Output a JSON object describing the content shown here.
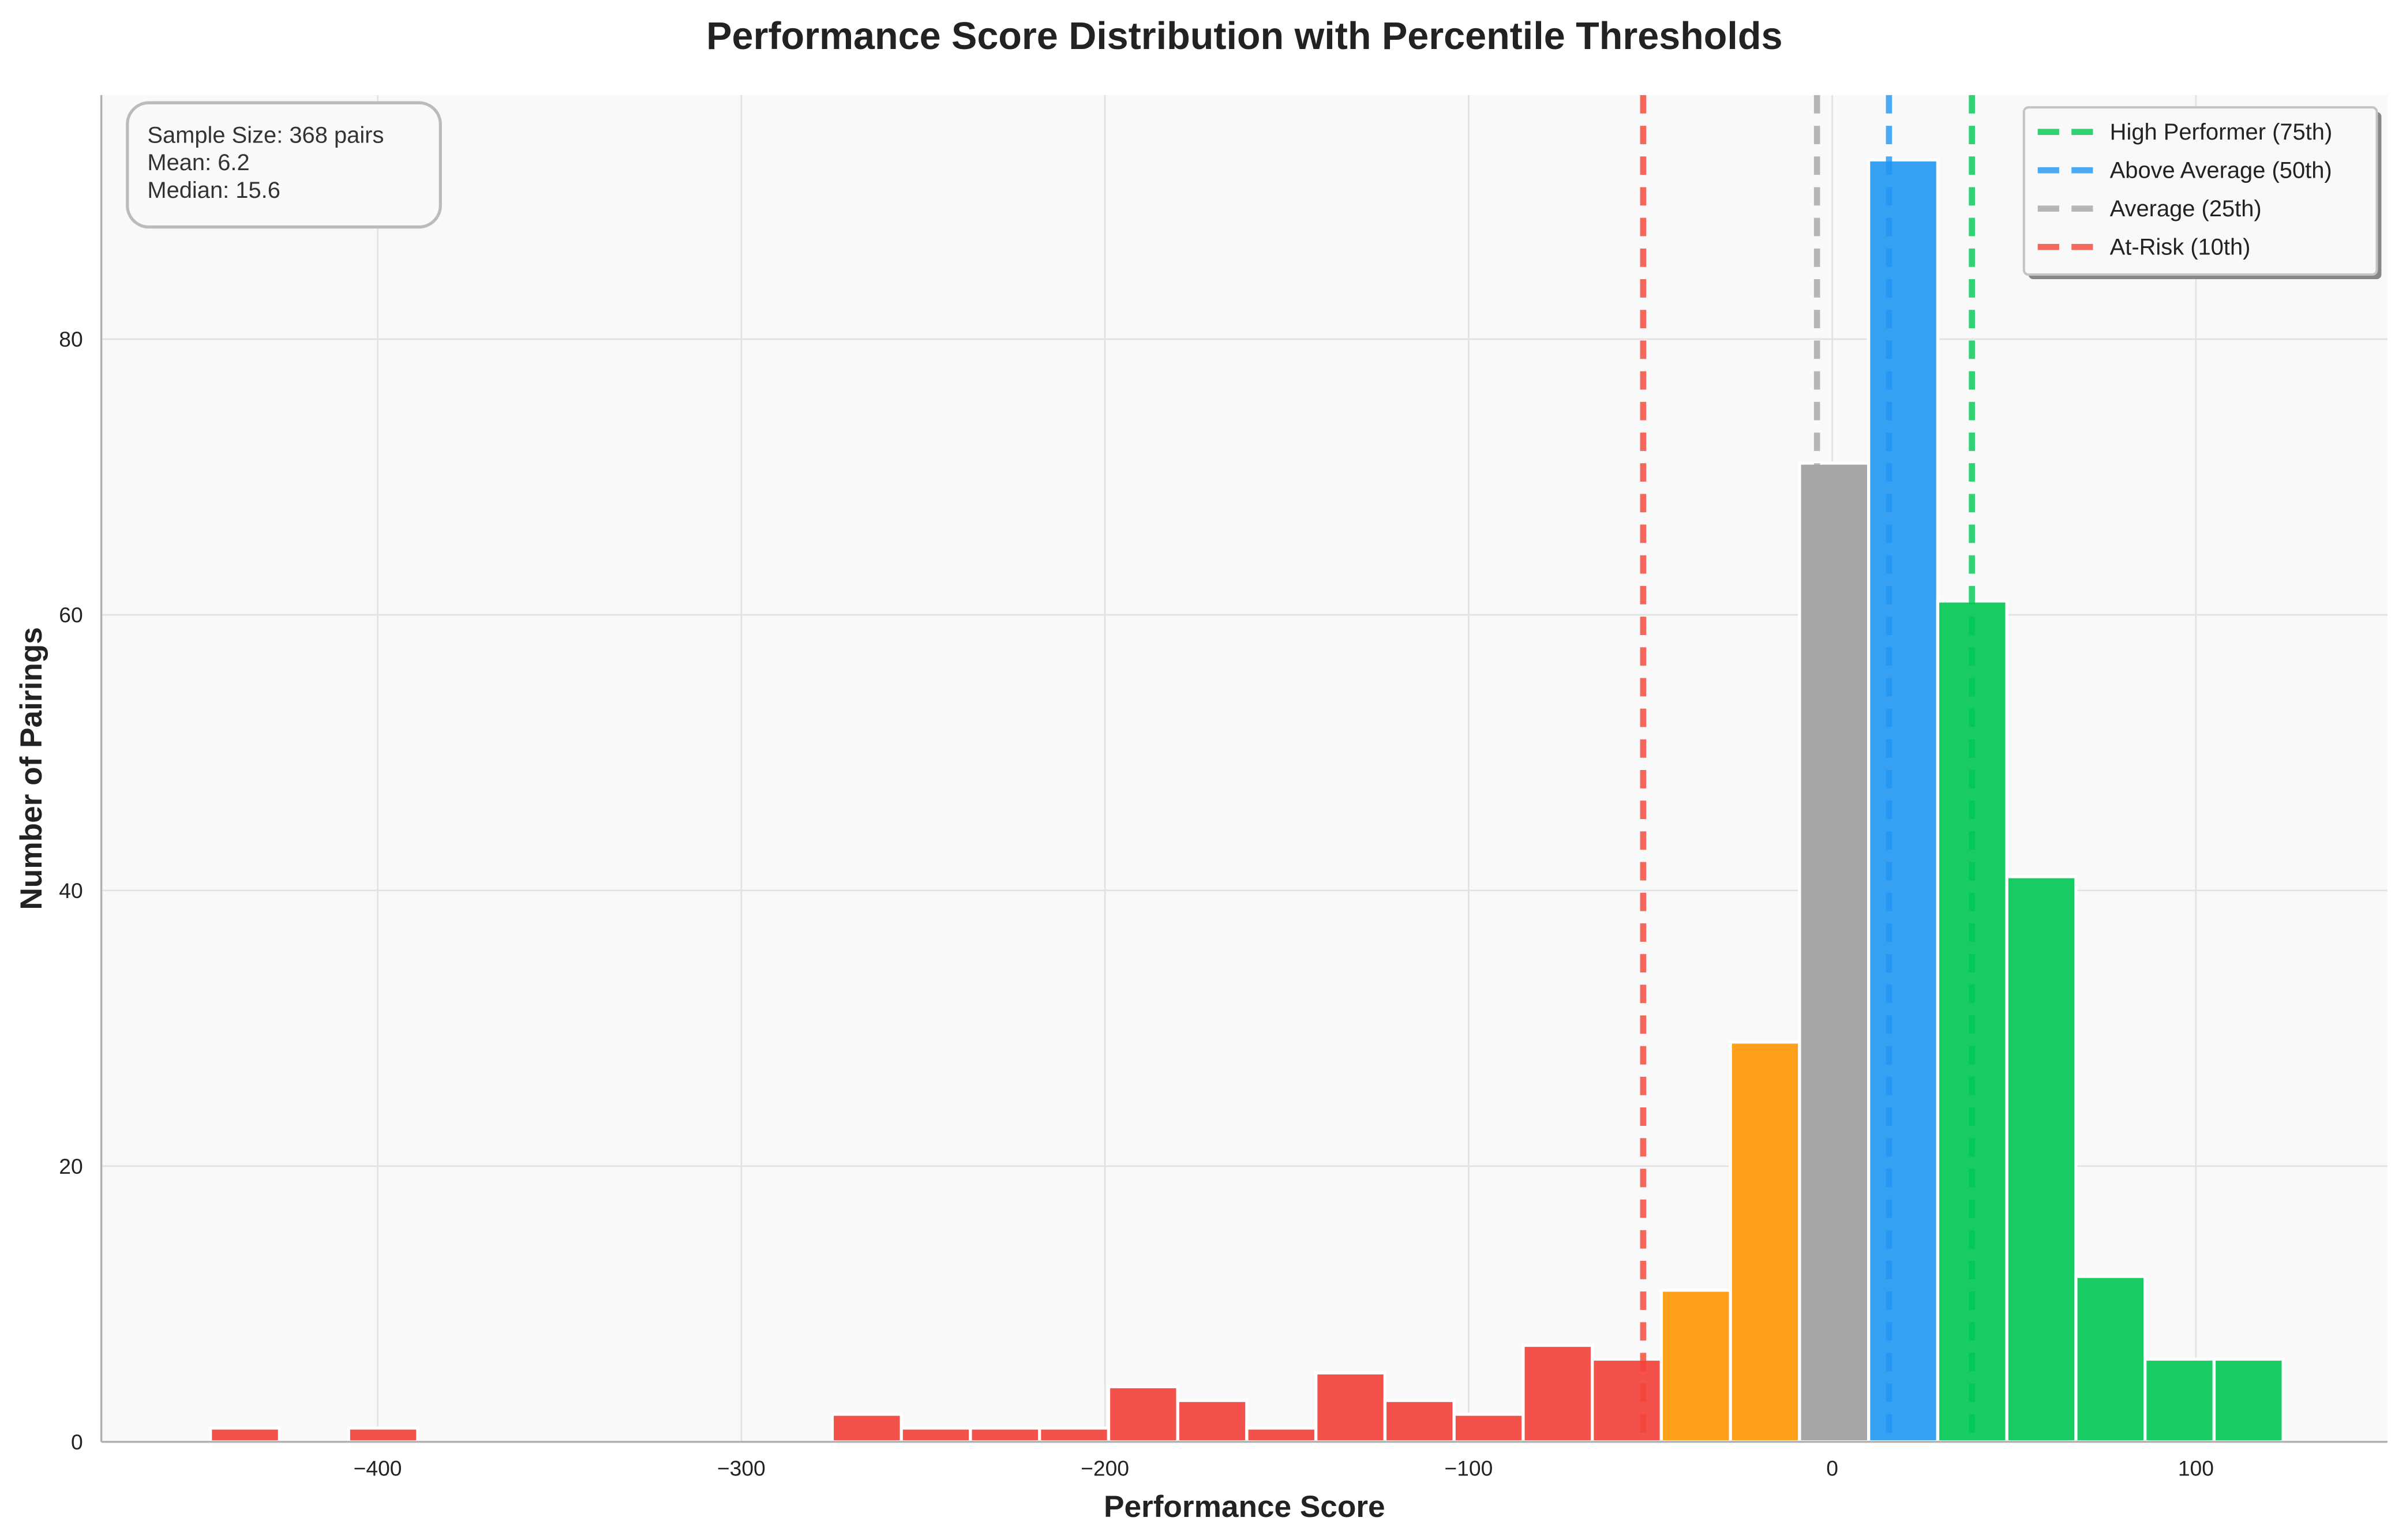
{
  "chart_data": {
    "type": "bar",
    "subtype": "histogram",
    "title": "Performance Score Distribution with Percentile Thresholds",
    "xlabel": "Performance Score",
    "ylabel": "Number of Pairings",
    "xlim": [
      -476,
      152.7
    ],
    "ylim": [
      0,
      97.7
    ],
    "xticks": [
      -400,
      -300,
      -200,
      -100,
      0,
      100
    ],
    "xtick_labels": [
      "−400",
      "−300",
      "−200",
      "−100",
      "0",
      "100"
    ],
    "yticks": [
      0,
      20,
      40,
      60,
      80
    ],
    "ytick_labels": [
      "0",
      "20",
      "40",
      "60",
      "80"
    ],
    "grid": true,
    "bin_start": -446,
    "bin_width": 19.0,
    "counts": [
      1,
      0,
      1,
      0,
      0,
      0,
      0,
      0,
      0,
      2,
      1,
      1,
      1,
      4,
      3,
      1,
      5,
      3,
      2,
      7,
      6,
      11,
      29,
      71,
      93,
      61,
      41,
      12,
      6,
      6
    ],
    "bin_groups": [
      "risk",
      "risk",
      "risk",
      "risk",
      "risk",
      "risk",
      "risk",
      "risk",
      "risk",
      "risk",
      "risk",
      "risk",
      "risk",
      "risk",
      "risk",
      "risk",
      "risk",
      "risk",
      "risk",
      "risk",
      "risk",
      "below",
      "below",
      "average",
      "above",
      "high",
      "high",
      "high",
      "high",
      "high"
    ],
    "group_colors": {
      "risk": "#f3524a",
      "below": "#ffa01c",
      "average": "#a6a6a6",
      "above": "#36a0f3",
      "high": "#18cc63"
    },
    "thresholds": [
      {
        "name": "High Performer (75th)",
        "value": 38.4,
        "color": "#00c853"
      },
      {
        "name": "Above Average (50th)",
        "value": 15.6,
        "color": "#2196f3"
      },
      {
        "name": "Average (25th)",
        "value": -4.2,
        "color": "#a6a6a6"
      },
      {
        "name": "At-Risk (10th)",
        "value": -52,
        "color": "#f44336"
      }
    ],
    "legend_position": "top-right",
    "stats_box": {
      "sample_size": "Sample Size: 368 pairs",
      "mean": "Mean: 6.2",
      "median": "Median: 15.6"
    }
  }
}
